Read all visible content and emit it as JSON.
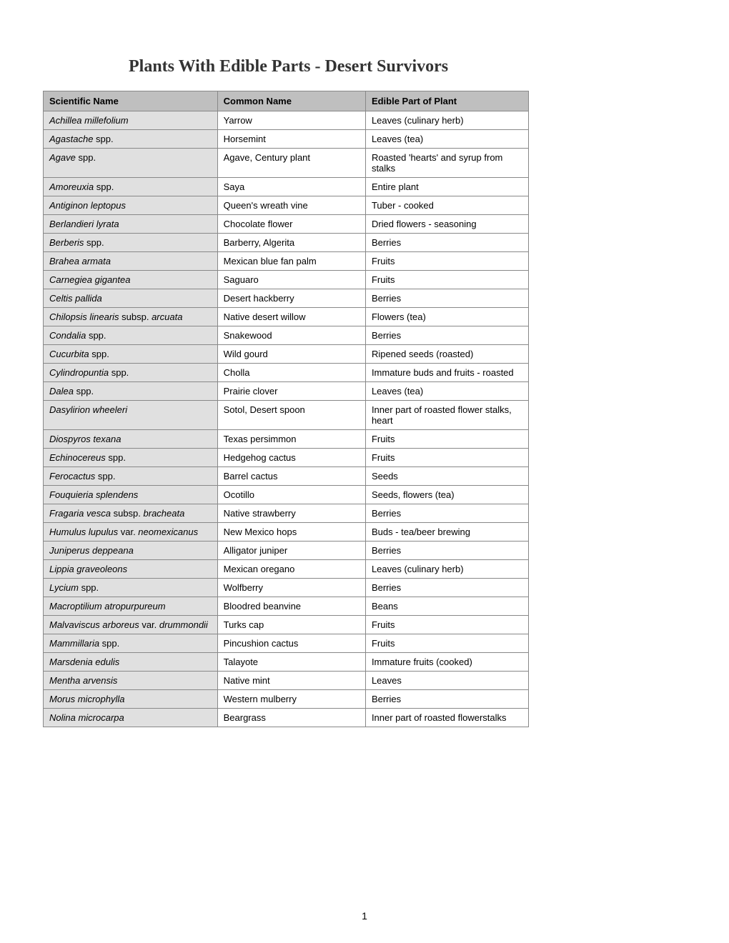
{
  "title": "Plants With Edible Parts - Desert Survivors",
  "pageNumber": "1",
  "columns": {
    "scientific": "Scientific Name",
    "common": "Common Name",
    "edible": "Edible Part of Plant"
  },
  "rows": [
    {
      "sci": "Achillea millefolium",
      "common": "Yarrow",
      "edible": "Leaves (culinary herb)"
    },
    {
      "sci": "Agastache",
      "suffix": " spp.",
      "common": "Horsemint",
      "edible": "Leaves (tea)"
    },
    {
      "sci": "Agave",
      "suffix": " spp.",
      "common": "Agave, Century plant",
      "edible": "Roasted 'hearts' and syrup from stalks"
    },
    {
      "sci": "Amoreuxia",
      "suffix": " spp.",
      "common": "Saya",
      "edible": "Entire plant"
    },
    {
      "sci": "Antiginon leptopus",
      "common": "Queen's wreath vine",
      "edible": "Tuber - cooked"
    },
    {
      "sci": "Berlandieri lyrata",
      "common": "Chocolate flower",
      "edible": "Dried flowers - seasoning"
    },
    {
      "sci": "Berberis",
      "suffix": " spp.",
      "common": "Barberry, Algerita",
      "edible": "Berries"
    },
    {
      "sci": "Brahea armata",
      "common": "Mexican blue fan palm",
      "edible": "Fruits"
    },
    {
      "sci": "Carnegiea gigantea",
      "common": "Saguaro",
      "edible": "Fruits"
    },
    {
      "sci": "Celtis pallida",
      "common": "Desert hackberry",
      "edible": "Berries"
    },
    {
      "sci": "Chilopsis linearis",
      "suffix": " subsp. ",
      "sci2": "arcuata",
      "common": "Native desert willow",
      "edible": "Flowers (tea)"
    },
    {
      "sci": "Condalia",
      "suffix": " spp.",
      "common": "Snakewood",
      "edible": "Berries"
    },
    {
      "sci": "Cucurbita",
      "suffix": " spp.",
      "common": "Wild gourd",
      "edible": "Ripened seeds (roasted)"
    },
    {
      "sci": "Cylindropuntia",
      "suffix": " spp.",
      "common": "Cholla",
      "edible": "Immature buds and fruits - roasted"
    },
    {
      "sci": "Dalea",
      "suffix": " spp.",
      "common": "Prairie clover",
      "edible": "Leaves (tea)"
    },
    {
      "sci": "Dasylirion wheeleri",
      "common": "Sotol, Desert spoon",
      "edible": "Inner part of roasted flower stalks, heart"
    },
    {
      "sci": "Diospyros texana",
      "common": "Texas persimmon",
      "edible": "Fruits"
    },
    {
      "sci": "Echinocereus",
      "suffix": " spp.",
      "common": "Hedgehog cactus",
      "edible": "Fruits"
    },
    {
      "sci": "Ferocactus",
      "suffix": " spp.",
      "common": "Barrel cactus",
      "edible": "Seeds"
    },
    {
      "sci": "Fouquieria splendens",
      "common": "Ocotillo",
      "edible": "Seeds, flowers (tea)"
    },
    {
      "sci": "Fragaria vesca",
      "suffix": " subsp. ",
      "sci2": "bracheata",
      "common": "Native strawberry",
      "edible": "Berries"
    },
    {
      "sci": "Humulus lupulus",
      "suffix": " var. ",
      "sci2": "neomexicanus",
      "common": "New Mexico hops",
      "edible": "Buds - tea/beer brewing"
    },
    {
      "sci": "Juniperus deppeana",
      "common": "Alligator juniper",
      "edible": "Berries"
    },
    {
      "sci": "Lippia graveoleons",
      "common": "Mexican oregano",
      "edible": "Leaves (culinary herb)"
    },
    {
      "sci": "Lycium",
      "suffix": " spp.",
      "common": "Wolfberry",
      "edible": "Berries"
    },
    {
      "sci": "Macroptilium atropurpureum",
      "common": "Bloodred beanvine",
      "edible": "Beans"
    },
    {
      "sci": "Malvaviscus arboreus",
      "suffix": " var. ",
      "sci2": "drummondii",
      "common": "Turks cap",
      "edible": "Fruits"
    },
    {
      "sci": "Mammillaria",
      "suffix": " spp.",
      "common": "Pincushion cactus",
      "edible": "Fruits"
    },
    {
      "sci": "Marsdenia edulis",
      "common": "Talayote",
      "edible": "Immature fruits (cooked)"
    },
    {
      "sci": "Mentha arvensis",
      "common": "Native mint",
      "edible": "Leaves"
    },
    {
      "sci": "Morus microphylla",
      "common": "Western mulberry",
      "edible": "Berries"
    },
    {
      "sci": "Nolina microcarpa",
      "common": "Beargrass",
      "edible": "Inner part of roasted flowerstalks"
    }
  ]
}
